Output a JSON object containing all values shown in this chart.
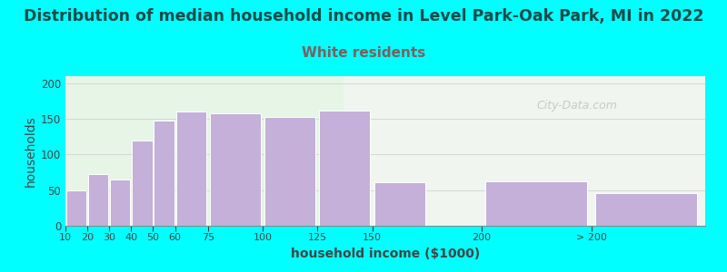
{
  "title": "Distribution of median household income in Level Park-Oak Park, MI in 2022",
  "subtitle": "White residents",
  "xlabel": "household income ($1000)",
  "ylabel": "households",
  "background_outer": "#00FFFF",
  "background_inner_left": "#e6f5e6",
  "background_inner_right": "#f0f5f0",
  "bar_color": "#c4b0d8",
  "bar_edgecolor": "#ffffff",
  "title_fontsize": 12.5,
  "title_color": "#1a4a4a",
  "subtitle_fontsize": 11,
  "subtitle_color": "#7a6060",
  "xlabel_fontsize": 10,
  "ylabel_fontsize": 10,
  "tick_labels": [
    "10",
    "20",
    "30",
    "40",
    "50",
    "60",
    "75",
    "100",
    "125",
    "150",
    "200",
    "> 200"
  ],
  "bar_heights": [
    50,
    72,
    65,
    120,
    147,
    160,
    158,
    153,
    162,
    61,
    63,
    46
  ],
  "bar_widths": [
    10,
    10,
    10,
    10,
    10,
    15,
    25,
    25,
    25,
    25,
    50,
    50
  ],
  "bar_lefts": [
    10,
    20,
    30,
    40,
    50,
    60,
    75,
    100,
    125,
    150,
    200,
    250
  ],
  "ylim": [
    0,
    210
  ],
  "yticks": [
    0,
    50,
    100,
    150,
    200
  ],
  "watermark": "City-Data.com",
  "xlim_left": 10,
  "xlim_right": 302
}
